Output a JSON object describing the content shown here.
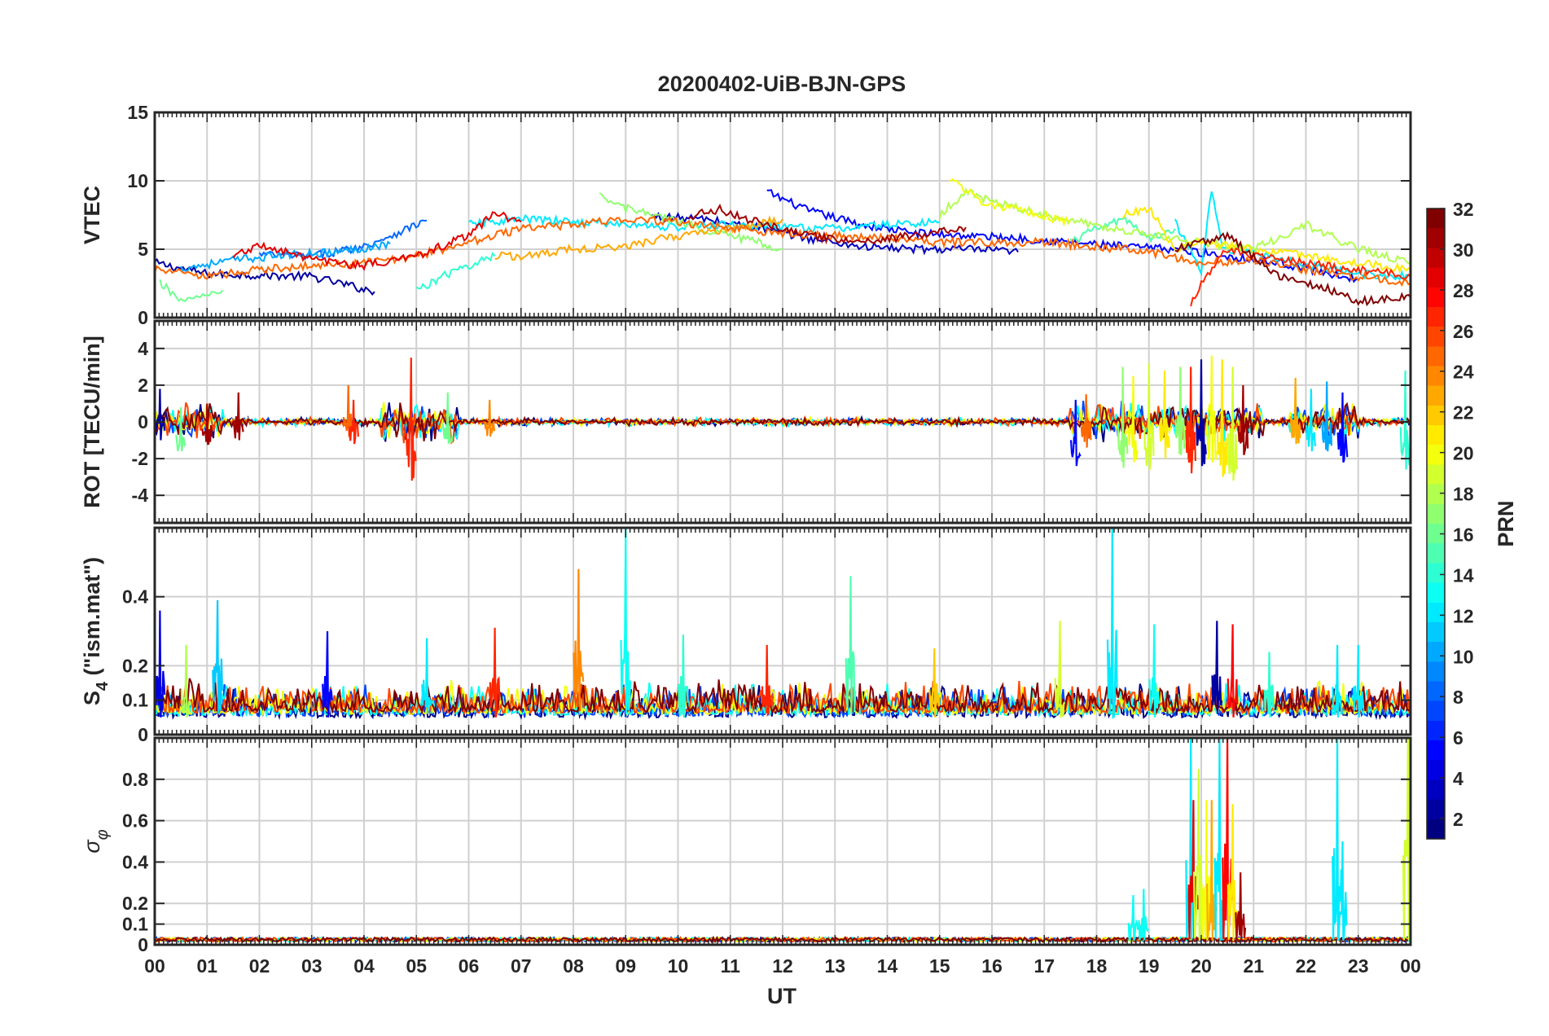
{
  "chart_data": {
    "type": "line",
    "title": "20200402-UiB-BJN-GPS",
    "xlabel": "UT",
    "xlim": [
      0,
      24
    ],
    "x_tick_labels": [
      "00",
      "01",
      "02",
      "03",
      "04",
      "05",
      "06",
      "07",
      "08",
      "09",
      "10",
      "11",
      "12",
      "13",
      "14",
      "15",
      "16",
      "17",
      "18",
      "19",
      "20",
      "21",
      "22",
      "23",
      "00"
    ],
    "grid": true,
    "colorbar": {
      "label": "PRN",
      "range": [
        1,
        32
      ],
      "tick_labels": [
        "2",
        "4",
        "6",
        "8",
        "10",
        "12",
        "14",
        "16",
        "18",
        "20",
        "22",
        "24",
        "26",
        "28",
        "30",
        "32"
      ],
      "colormap": "jet",
      "placement": "right"
    },
    "panels": [
      {
        "id": "vtec",
        "ylabel": "VTEC",
        "ylim": [
          0,
          15
        ],
        "y_ticks": [
          0,
          5,
          10,
          15
        ],
        "y_tick_labels": [
          "0",
          "5",
          "10",
          "15"
        ],
        "series": [
          {
            "prn": 2,
            "x": [
              0.0,
              1,
              2,
              3,
              4.2
            ],
            "y": [
              4.0,
              3.2,
              3.1,
              3.0,
              1.9
            ]
          },
          {
            "prn": 5,
            "x": [
              11.7,
              12.5,
              13.5,
              14.5,
              15.5,
              16.5,
              17.5,
              18.5,
              19.5,
              20.5,
              21.5,
              22.5,
              23.0
            ],
            "y": [
              9.2,
              7.8,
              6.8,
              6.2,
              6.0,
              5.8,
              5.5,
              5.2,
              5.0,
              4.5,
              4.0,
              3.2,
              2.8
            ]
          },
          {
            "prn": 3,
            "x": [
              9.5,
              10.5,
              11.5,
              12.5,
              13.5,
              14.5,
              15.5,
              16.5
            ],
            "y": [
              7.4,
              7.2,
              6.6,
              5.8,
              5.2,
              5.0,
              5.0,
              4.8
            ]
          },
          {
            "prn": 8,
            "x": [
              2.0,
              3,
              4,
              5.2
            ],
            "y": [
              4.6,
              4.5,
              5.2,
              7.1
            ]
          },
          {
            "prn": 10,
            "x": [
              0.5,
              1.5,
              2.5,
              3.5,
              4.5
            ],
            "y": [
              3.6,
              4.2,
              4.6,
              4.8,
              5.4
            ]
          },
          {
            "prn": 12,
            "x": [
              6.0,
              7,
              8,
              9,
              10,
              11,
              12,
              13,
              14,
              15
            ],
            "y": [
              6.8,
              7.2,
              7.0,
              6.8,
              6.6,
              6.8,
              6.6,
              6.5,
              6.8,
              7.0
            ]
          },
          {
            "prn": 12,
            "x": [
              19.5,
              20.0,
              20.2,
              20.4,
              21,
              22,
              23,
              24
            ],
            "y": [
              7.0,
              3.5,
              9.3,
              5.0,
              4.8,
              3.8,
              3.2,
              3.0
            ]
          },
          {
            "prn": 14,
            "x": [
              5.0,
              5.5,
              6.0,
              6.5
            ],
            "y": [
              2.0,
              3.0,
              3.8,
              4.5
            ]
          },
          {
            "prn": 15,
            "x": [
              17.5,
              18,
              18.5,
              19,
              19.5
            ],
            "y": [
              5.5,
              6.5,
              7.2,
              5.8,
              6.5
            ]
          },
          {
            "prn": 16,
            "x": [
              0.1,
              0.5,
              1.0,
              1.3
            ],
            "y": [
              2.5,
              1.3,
              1.5,
              2.0
            ]
          },
          {
            "prn": 17,
            "x": [
              8.5,
              9,
              10,
              11,
              12
            ],
            "y": [
              8.8,
              8.0,
              7.0,
              6.0,
              5.0
            ]
          },
          {
            "prn": 18,
            "x": [
              15.0,
              15.5,
              16,
              17,
              18,
              19,
              20,
              21,
              22,
              23,
              24
            ],
            "y": [
              7.5,
              9.2,
              8.5,
              7.5,
              6.8,
              6.0,
              5.5,
              5.0,
              6.8,
              5.0,
              4.0
            ]
          },
          {
            "prn": 20,
            "x": [
              15.2,
              15.8,
              16.5,
              17.5
            ],
            "y": [
              10.2,
              8.5,
              7.8,
              7.0
            ]
          },
          {
            "prn": 21,
            "x": [
              18.5,
              19,
              19.5,
              20,
              21,
              22,
              23,
              24
            ],
            "y": [
              7.5,
              8.0,
              5.0,
              5.5,
              5.0,
              4.5,
              4.0,
              3.5
            ]
          },
          {
            "prn": 23,
            "x": [
              6.5,
              7,
              8,
              9,
              10,
              11,
              12
            ],
            "y": [
              4.5,
              4.5,
              5.0,
              5.2,
              6.0,
              6.5,
              7.2
            ]
          },
          {
            "prn": 25,
            "x": [
              0.0,
              1,
              2,
              3,
              4,
              5,
              6,
              7,
              8,
              9,
              10,
              11,
              12,
              13,
              14,
              15,
              16,
              17,
              18,
              19,
              20,
              21,
              22,
              23,
              24
            ],
            "y": [
              3.5,
              3.0,
              3.5,
              3.8,
              4.0,
              4.5,
              5.5,
              6.5,
              6.8,
              7.2,
              7.0,
              6.5,
              6.2,
              6.0,
              5.8,
              5.5,
              5.5,
              5.5,
              5.2,
              4.8,
              4.0,
              4.2,
              3.5,
              3.0,
              2.5
            ]
          },
          {
            "prn": 27,
            "x": [
              19.8,
              20.0,
              20.5,
              21,
              22,
              23,
              24
            ],
            "y": [
              1.0,
              2.5,
              5.0,
              4.5,
              4.0,
              3.5,
              3.0
            ]
          },
          {
            "prn": 29,
            "x": [
              1.5,
              2,
              3,
              4,
              5,
              6,
              6.5,
              7
            ],
            "y": [
              4.5,
              5.3,
              4.2,
              3.8,
              4.5,
              6.0,
              7.6,
              7.0
            ]
          },
          {
            "prn": 31,
            "x": [
              10.2,
              10.8,
              11.5,
              12.5,
              13.5,
              14.5,
              15.5
            ],
            "y": [
              7.4,
              7.9,
              7.0,
              6.0,
              5.5,
              6.0,
              6.6
            ]
          },
          {
            "prn": 32,
            "x": [
              19.5,
              20.5,
              21,
              21.5,
              22,
              22.5,
              23,
              24
            ],
            "y": [
              5.0,
              6.0,
              4.5,
              3.0,
              2.5,
              2.0,
              1.2,
              1.5
            ]
          }
        ]
      },
      {
        "id": "rot",
        "ylabel": "ROT [TECU/min]",
        "ylim": [
          -5.5,
          5.5
        ],
        "y_ticks": [
          -4,
          -2,
          0,
          2,
          4
        ],
        "y_tick_labels": [
          "-4",
          "-2",
          "0",
          "2",
          "4"
        ],
        "spikes": [
          {
            "x": 0.1,
            "lo": -1.0,
            "hi": 1.8,
            "prn": 2
          },
          {
            "x": 0.5,
            "lo": -1.6,
            "hi": 0.8,
            "prn": 16
          },
          {
            "x": 1.0,
            "lo": -1.2,
            "hi": 1.0,
            "prn": 31
          },
          {
            "x": 1.6,
            "lo": -1.0,
            "hi": 1.6,
            "prn": 31
          },
          {
            "x": 3.7,
            "lo": -0.8,
            "hi": 2.0,
            "prn": 25
          },
          {
            "x": 3.8,
            "lo": -1.2,
            "hi": 1.2,
            "prn": 27
          },
          {
            "x": 4.9,
            "lo": -3.2,
            "hi": 3.5,
            "prn": 27
          },
          {
            "x": 5.6,
            "lo": -1.2,
            "hi": 1.6,
            "prn": 16
          },
          {
            "x": 6.4,
            "lo": -0.8,
            "hi": 1.2,
            "prn": 24
          },
          {
            "x": 17.6,
            "lo": -2.4,
            "hi": 1.2,
            "prn": 5
          },
          {
            "x": 17.8,
            "lo": -1.4,
            "hi": 1.5,
            "prn": 25
          },
          {
            "x": 18.5,
            "lo": -2.5,
            "hi": 3.0,
            "prn": 17
          },
          {
            "x": 18.7,
            "lo": -2.2,
            "hi": 2.5,
            "prn": 20
          },
          {
            "x": 19.0,
            "lo": -2.6,
            "hi": 3.2,
            "prn": 19
          },
          {
            "x": 19.3,
            "lo": -2.0,
            "hi": 2.8,
            "prn": 21
          },
          {
            "x": 19.6,
            "lo": -1.8,
            "hi": 3.0,
            "prn": 17
          },
          {
            "x": 19.8,
            "lo": -2.8,
            "hi": 3.0,
            "prn": 27
          },
          {
            "x": 20.0,
            "lo": -2.4,
            "hi": 3.4,
            "prn": 2
          },
          {
            "x": 20.2,
            "lo": -2.2,
            "hi": 3.6,
            "prn": 20
          },
          {
            "x": 20.4,
            "lo": -3.0,
            "hi": 3.4,
            "prn": 21
          },
          {
            "x": 20.6,
            "lo": -3.2,
            "hi": 3.0,
            "prn": 19
          },
          {
            "x": 20.8,
            "lo": -1.8,
            "hi": 2.0,
            "prn": 31
          },
          {
            "x": 21.8,
            "lo": -1.2,
            "hi": 2.4,
            "prn": 23
          },
          {
            "x": 22.1,
            "lo": -1.6,
            "hi": 1.8,
            "prn": 12
          },
          {
            "x": 22.4,
            "lo": -1.6,
            "hi": 2.2,
            "prn": 10
          },
          {
            "x": 22.7,
            "lo": -2.2,
            "hi": 1.6,
            "prn": 5
          },
          {
            "x": 23.9,
            "lo": -2.6,
            "hi": 2.8,
            "prn": 14
          }
        ]
      },
      {
        "id": "s4",
        "ylabel": "S4 (\"ism.mat\")",
        "ylabel_main": "S",
        "ylabel_sub": "4",
        "ylabel_rest": " (\"ism.mat\")",
        "ylim": [
          0,
          0.6
        ],
        "y_ticks": [
          0,
          0.1,
          0.2,
          0.4
        ],
        "y_tick_labels": [
          "0",
          "0.1",
          "0.2",
          "0.4"
        ],
        "spikes": [
          {
            "x": 0.1,
            "lo": 0.05,
            "hi": 0.36,
            "prn": 4
          },
          {
            "x": 0.6,
            "lo": 0.05,
            "hi": 0.26,
            "prn": 18
          },
          {
            "x": 1.2,
            "lo": 0.06,
            "hi": 0.39,
            "prn": 11
          },
          {
            "x": 3.3,
            "lo": 0.05,
            "hi": 0.3,
            "prn": 5
          },
          {
            "x": 5.2,
            "lo": 0.06,
            "hi": 0.28,
            "prn": 12
          },
          {
            "x": 6.5,
            "lo": 0.05,
            "hi": 0.31,
            "prn": 27
          },
          {
            "x": 8.1,
            "lo": 0.08,
            "hi": 0.48,
            "prn": 24
          },
          {
            "x": 9.0,
            "lo": 0.06,
            "hi": 0.6,
            "prn": 13
          },
          {
            "x": 10.1,
            "lo": 0.05,
            "hi": 0.29,
            "prn": 14
          },
          {
            "x": 11.7,
            "lo": 0.06,
            "hi": 0.26,
            "prn": 27
          },
          {
            "x": 13.3,
            "lo": 0.06,
            "hi": 0.46,
            "prn": 15
          },
          {
            "x": 14.9,
            "lo": 0.05,
            "hi": 0.25,
            "prn": 22
          },
          {
            "x": 17.3,
            "lo": 0.05,
            "hi": 0.33,
            "prn": 19
          },
          {
            "x": 18.3,
            "lo": 0.05,
            "hi": 0.6,
            "prn": 12
          },
          {
            "x": 19.1,
            "lo": 0.05,
            "hi": 0.32,
            "prn": 13
          },
          {
            "x": 20.3,
            "lo": 0.06,
            "hi": 0.33,
            "prn": 2
          },
          {
            "x": 20.6,
            "lo": 0.05,
            "hi": 0.32,
            "prn": 28
          },
          {
            "x": 21.3,
            "lo": 0.05,
            "hi": 0.24,
            "prn": 14
          },
          {
            "x": 22.6,
            "lo": 0.05,
            "hi": 0.26,
            "prn": 12
          },
          {
            "x": 23.0,
            "lo": 0.05,
            "hi": 0.26,
            "prn": 12
          }
        ]
      },
      {
        "id": "sigma_phi",
        "ylabel": "σφ",
        "ylabel_main": "σ",
        "ylabel_sub": "φ",
        "ylim": [
          0,
          1.0
        ],
        "y_ticks": [
          0,
          0.1,
          0.2,
          0.4,
          0.6,
          0.8
        ],
        "y_tick_labels": [
          "0",
          "0.1",
          "0.2",
          "0.4",
          "0.6",
          "0.8"
        ],
        "spikes": [
          {
            "x": 18.7,
            "lo": 0.02,
            "hi": 0.24,
            "prn": 13
          },
          {
            "x": 18.9,
            "lo": 0.02,
            "hi": 0.27,
            "prn": 13
          },
          {
            "x": 19.8,
            "lo": 0.02,
            "hi": 1.0,
            "prn": 12
          },
          {
            "x": 19.85,
            "lo": 0.02,
            "hi": 0.7,
            "prn": 29
          },
          {
            "x": 19.95,
            "lo": 0.02,
            "hi": 0.85,
            "prn": 19
          },
          {
            "x": 20.1,
            "lo": 0.02,
            "hi": 0.7,
            "prn": 20
          },
          {
            "x": 20.2,
            "lo": 0.02,
            "hi": 0.7,
            "prn": 23
          },
          {
            "x": 20.35,
            "lo": 0.02,
            "hi": 1.0,
            "prn": 12
          },
          {
            "x": 20.5,
            "lo": 0.02,
            "hi": 1.0,
            "prn": 28
          },
          {
            "x": 20.6,
            "lo": 0.02,
            "hi": 0.68,
            "prn": 21
          },
          {
            "x": 20.75,
            "lo": 0.02,
            "hi": 0.35,
            "prn": 31
          },
          {
            "x": 22.6,
            "lo": 0.02,
            "hi": 1.0,
            "prn": 12
          },
          {
            "x": 22.7,
            "lo": 0.02,
            "hi": 0.5,
            "prn": 12
          },
          {
            "x": 23.95,
            "lo": 0.02,
            "hi": 1.0,
            "prn": 19
          }
        ]
      }
    ]
  }
}
